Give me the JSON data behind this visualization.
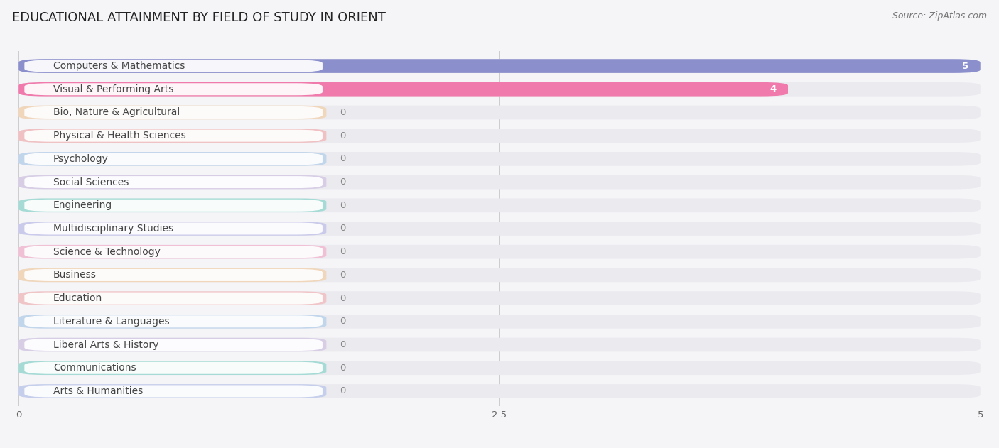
{
  "title": "EDUCATIONAL ATTAINMENT BY FIELD OF STUDY IN ORIENT",
  "source": "Source: ZipAtlas.com",
  "categories": [
    "Computers & Mathematics",
    "Visual & Performing Arts",
    "Bio, Nature & Agricultural",
    "Physical & Health Sciences",
    "Psychology",
    "Social Sciences",
    "Engineering",
    "Multidisciplinary Studies",
    "Science & Technology",
    "Business",
    "Education",
    "Literature & Languages",
    "Liberal Arts & History",
    "Communications",
    "Arts & Humanities"
  ],
  "values": [
    5,
    4,
    0,
    0,
    0,
    0,
    0,
    0,
    0,
    0,
    0,
    0,
    0,
    0,
    0
  ],
  "bar_colors": [
    "#8b8fcc",
    "#f07aab",
    "#f5c690",
    "#f5a0a0",
    "#a0c4e8",
    "#c8b8e0",
    "#6dcfbf",
    "#b0b0e8",
    "#f5a0c0",
    "#f5c690",
    "#f5a8a8",
    "#a0c4e8",
    "#c8b8e0",
    "#6dcfbf",
    "#a8b8e8"
  ],
  "xlim": [
    0,
    5
  ],
  "xticks": [
    0,
    2.5,
    5
  ],
  "background_color": "#f5f5f8",
  "row_bg_color": "#eaeaef",
  "label_bg_color": "#ffffff",
  "title_fontsize": 13,
  "label_fontsize": 10,
  "value_fontsize": 9.5,
  "source_fontsize": 9
}
